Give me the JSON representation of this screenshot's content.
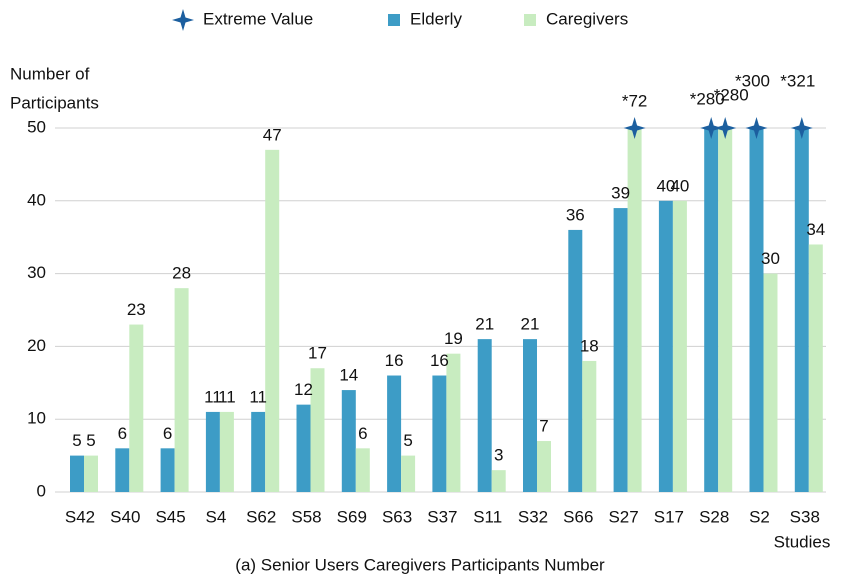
{
  "chart_data": {
    "type": "bar",
    "title": "(a) Senior Users Caregivers Participants Number",
    "y_label_lines": [
      "Number of",
      "Participants"
    ],
    "x_label": "Studies",
    "categories": [
      "S42",
      "S40",
      "S45",
      "S4",
      "S62",
      "S58",
      "S69",
      "S63",
      "S37",
      "S11",
      "S32",
      "S66",
      "S27",
      "S17",
      "S28",
      "S2",
      "S38"
    ],
    "series": [
      {
        "name": "Elderly",
        "color": "#3d9cc6",
        "values": [
          5,
          6,
          6,
          11,
          11,
          12,
          14,
          16,
          16,
          21,
          21,
          36,
          39,
          40,
          280,
          300,
          321
        ],
        "value_labels": [
          "5",
          "6",
          "6",
          "11",
          "11",
          "12",
          "14",
          "16",
          "16",
          "21",
          "21",
          "36",
          "39",
          "40",
          "*280",
          "*300",
          "*321"
        ]
      },
      {
        "name": "Caregivers",
        "color": "#c8ecc0",
        "values": [
          5,
          23,
          28,
          11,
          47,
          17,
          6,
          5,
          19,
          3,
          7,
          18,
          72,
          40,
          280,
          30,
          34
        ],
        "value_labels": [
          "5",
          "23",
          "28",
          "11",
          "47",
          "17",
          "6",
          "5",
          "19",
          "3",
          "7",
          "18",
          "*72",
          "40",
          "*280",
          "30",
          "34"
        ]
      }
    ],
    "extreme_marker": {
      "name": "Extreme Value",
      "color": "#1c5f9f"
    },
    "ylim": [
      0,
      50
    ],
    "yticks": [
      0,
      10,
      20,
      30,
      40,
      50
    ],
    "grid": true
  }
}
